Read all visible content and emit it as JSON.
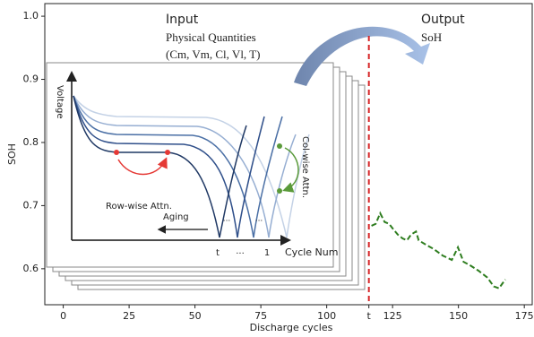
{
  "chart_data": {
    "type": "line",
    "x_label": "Discharge cycles",
    "y_label": "SOH",
    "x": [
      117,
      118.6,
      120.3,
      122,
      123.7,
      125.4,
      127,
      128.8,
      130.5,
      132,
      133.9,
      134.9,
      137.3,
      140.7,
      144,
      147.5,
      149.8,
      151.9,
      154.2,
      157.6,
      161,
      163.4,
      165.4,
      167.8
    ],
    "series": [
      {
        "color": "#2e7d1f",
        "values": [
          0.668,
          0.671,
          0.688,
          0.674,
          0.671,
          0.662,
          0.654,
          0.648,
          0.645,
          0.654,
          0.659,
          0.645,
          0.639,
          0.631,
          0.621,
          0.614,
          0.634,
          0.611,
          0.606,
          0.597,
          0.586,
          0.572,
          0.569,
          0.583
        ]
      }
    ],
    "xlim": [
      -7,
      178
    ],
    "ylim": [
      0.543,
      1.02
    ],
    "xticks": [
      0,
      25,
      50,
      75,
      100,
      {
        "value": 116,
        "label": "t"
      },
      125,
      150,
      175
    ],
    "yticks": [
      0.6,
      0.7,
      0.8,
      0.9,
      {
        "value": 1.0,
        "label": "1.0"
      }
    ],
    "marker_color": "#d62728",
    "annotations": [
      "Input",
      "Physical Quantities",
      "(Cm, Vm, Cl, Vl, T)",
      "Output",
      "SoH",
      "Voltage",
      "Cycle Num",
      "Row-wise Attn.",
      "Col-wise Attn.",
      "Aging",
      "t",
      "...",
      "1",
      "...",
      "..."
    ]
  }
}
